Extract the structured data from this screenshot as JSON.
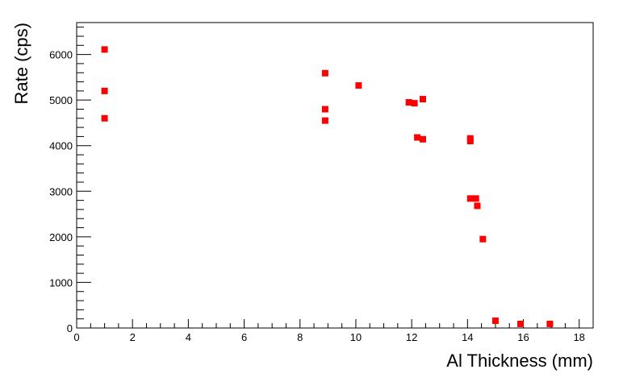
{
  "chart_data": {
    "type": "scatter",
    "title": "",
    "xlabel": "Al Thickness (mm)",
    "ylabel": "Rate (cps)",
    "xlim": [
      0,
      18.5
    ],
    "ylim": [
      0,
      6700
    ],
    "xticks": [
      0,
      2,
      4,
      6,
      8,
      10,
      12,
      14,
      16,
      18
    ],
    "yticks": [
      0,
      1000,
      2000,
      3000,
      4000,
      5000,
      6000
    ],
    "grid": false,
    "legend": "none",
    "marker_color": "#ff0000",
    "series": [
      {
        "points": [
          {
            "x": 1.0,
            "y": 6110
          },
          {
            "x": 1.0,
            "y": 5200
          },
          {
            "x": 1.0,
            "y": 4600
          },
          {
            "x": 8.9,
            "y": 5590
          },
          {
            "x": 8.9,
            "y": 4800
          },
          {
            "x": 8.9,
            "y": 4550
          },
          {
            "x": 10.1,
            "y": 5320
          },
          {
            "x": 11.9,
            "y": 4950
          },
          {
            "x": 12.1,
            "y": 4930
          },
          {
            "x": 12.4,
            "y": 5020
          },
          {
            "x": 12.2,
            "y": 4180
          },
          {
            "x": 12.4,
            "y": 4140
          },
          {
            "x": 14.1,
            "y": 4160
          },
          {
            "x": 14.1,
            "y": 4100
          },
          {
            "x": 14.1,
            "y": 2840
          },
          {
            "x": 14.3,
            "y": 2840
          },
          {
            "x": 14.35,
            "y": 2680
          },
          {
            "x": 14.55,
            "y": 1950
          },
          {
            "x": 15.0,
            "y": 160
          },
          {
            "x": 15.9,
            "y": 90
          },
          {
            "x": 16.95,
            "y": 90
          }
        ]
      }
    ]
  }
}
